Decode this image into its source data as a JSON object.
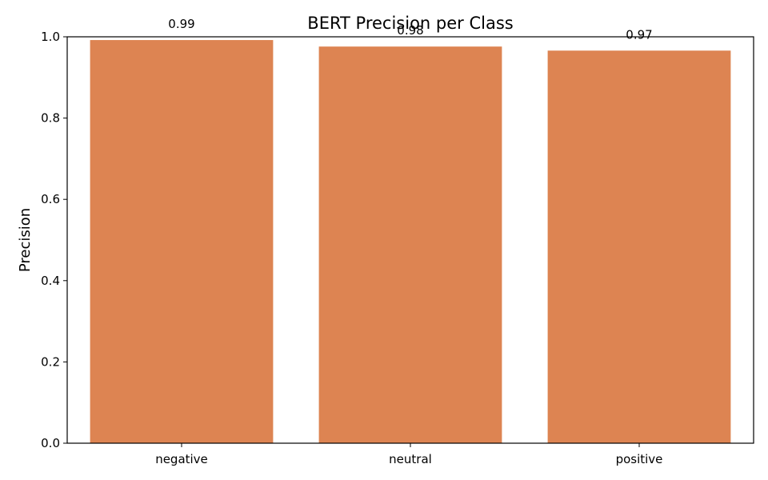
{
  "chart_data": {
    "type": "bar",
    "title": "BERT Precision per Class",
    "xlabel": "",
    "ylabel": "Precision",
    "categories": [
      "negative",
      "neutral",
      "positive"
    ],
    "values": [
      0.992,
      0.976,
      0.966
    ],
    "value_labels": [
      "0.99",
      "0.98",
      "0.97"
    ],
    "ylim": [
      0,
      1.0
    ],
    "yticks": [
      0.0,
      0.2,
      0.4,
      0.6,
      0.8,
      1.0
    ],
    "ytick_labels": [
      "0.0",
      "0.2",
      "0.4",
      "0.6",
      "0.8",
      "1.0"
    ],
    "bar_color": "#dd8452",
    "grid": false,
    "legend": "none"
  }
}
